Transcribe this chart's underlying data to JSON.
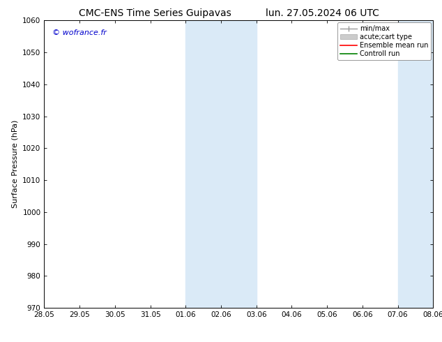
{
  "title_left": "CMC-ENS Time Series Guipavas",
  "title_right": "lun. 27.05.2024 06 UTC",
  "ylabel": "Surface Pressure (hPa)",
  "ylim": [
    970,
    1060
  ],
  "yticks": [
    970,
    980,
    990,
    1000,
    1010,
    1020,
    1030,
    1040,
    1050,
    1060
  ],
  "xtick_labels": [
    "28.05",
    "29.05",
    "30.05",
    "31.05",
    "01.06",
    "02.06",
    "03.06",
    "04.06",
    "05.06",
    "06.06",
    "07.06",
    "08.06"
  ],
  "xtick_positions": [
    0,
    1,
    2,
    3,
    4,
    5,
    6,
    7,
    8,
    9,
    10,
    11
  ],
  "x_start": 0,
  "x_end": 11,
  "shaded_regions": [
    {
      "x_start": 4,
      "x_end": 6
    },
    {
      "x_start": 10,
      "x_end": 11
    }
  ],
  "shaded_color": "#daeaf7",
  "watermark": "© wofrance.fr",
  "watermark_color": "#0000cc",
  "legend_entries": [
    {
      "label": "min/max",
      "color": "#aaaaaa"
    },
    {
      "label": "acute;cart type",
      "color": "#cccccc"
    },
    {
      "label": "Ensemble mean run",
      "color": "red"
    },
    {
      "label": "Controll run",
      "color": "green"
    }
  ],
  "bg_color": "#ffffff",
  "font_size_title": 10,
  "font_size_tick": 7.5,
  "font_size_ylabel": 8,
  "font_size_legend": 7,
  "font_size_watermark": 8
}
